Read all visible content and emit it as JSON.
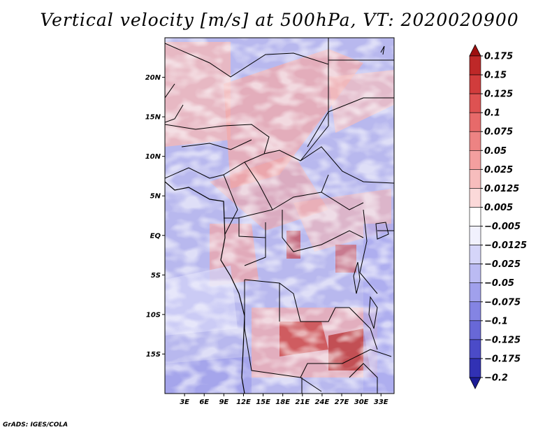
{
  "title": "Vertical velocity [m/s] at 500hPa, VT: 2020020900",
  "credit": "GrADS: IGES/COLA",
  "map": {
    "lon_range": [
      0,
      35
    ],
    "lat_range": [
      -20,
      25
    ],
    "lat_ticks": [
      {
        "value": 20,
        "label": "20N"
      },
      {
        "value": 15,
        "label": "15N"
      },
      {
        "value": 10,
        "label": "10N"
      },
      {
        "value": 5,
        "label": "5N"
      },
      {
        "value": 0,
        "label": "EQ"
      },
      {
        "value": -5,
        "label": "5S"
      },
      {
        "value": -10,
        "label": "10S"
      },
      {
        "value": -15,
        "label": "15S"
      }
    ],
    "lon_ticks": [
      {
        "value": 3,
        "label": "3E"
      },
      {
        "value": 6,
        "label": "6E"
      },
      {
        "value": 9,
        "label": "9E"
      },
      {
        "value": 12,
        "label": "12E"
      },
      {
        "value": 15,
        "label": "15E"
      },
      {
        "value": 18,
        "label": "18E"
      },
      {
        "value": 21,
        "label": "21E"
      },
      {
        "value": 24,
        "label": "24E"
      },
      {
        "value": 27,
        "label": "27E"
      },
      {
        "value": 30,
        "label": "30E"
      },
      {
        "value": 33,
        "label": "33E"
      }
    ]
  },
  "colorbar": {
    "levels": [
      {
        "label": "0.175",
        "color": "#b41e1e"
      },
      {
        "label": "0.15",
        "color": "#c83232"
      },
      {
        "label": "0.125",
        "color": "#d94646"
      },
      {
        "label": "0.1",
        "color": "#e35e5e"
      },
      {
        "label": "0.075",
        "color": "#ea7676"
      },
      {
        "label": "0.05",
        "color": "#f09090"
      },
      {
        "label": "0.025",
        "color": "#f5aeae"
      },
      {
        "label": "0.0125",
        "color": "#f9cccc"
      },
      {
        "label": "0.005",
        "color": "#fce6e6"
      },
      {
        "label": "-0.005",
        "color": "#ffffff"
      },
      {
        "label": "-0.0125",
        "color": "#e2e2fb"
      },
      {
        "label": "-0.025",
        "color": "#c8c8f6"
      },
      {
        "label": "-0.05",
        "color": "#aeaef0"
      },
      {
        "label": "-0.075",
        "color": "#9292e8"
      },
      {
        "label": "-0.1",
        "color": "#7676dd"
      },
      {
        "label": "-0.125",
        "color": "#5a5ad0"
      },
      {
        "label": "-0.175",
        "color": "#3c3cc0"
      },
      {
        "label": "-0.2",
        "color": "#2626a8"
      }
    ],
    "extend_top_color": "#9e1010",
    "extend_bottom_color": "#1c1c96"
  }
}
